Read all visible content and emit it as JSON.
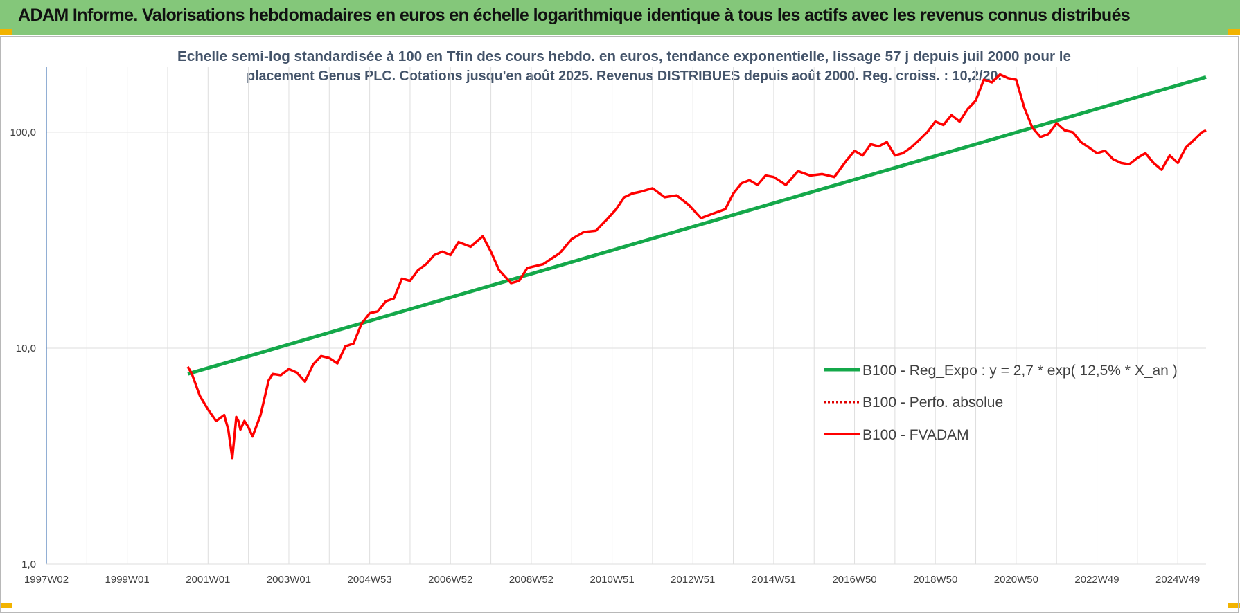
{
  "banner": {
    "title": "ADAM Informe. Valorisations hebdomadaires en euros en échelle logarithmique identique à tous les actifs avec les revenus connus distribués"
  },
  "colors": {
    "banner_bg": "#84c77a",
    "corner": "#f2b300",
    "fvadam": "#ff0000",
    "regression": "#14a84a",
    "perfo": "#e00000",
    "grid": "#dedede",
    "axis": "#4a7ab8"
  },
  "chart_data": {
    "type": "line",
    "title_lines": [
      "Echelle semi-log standardisée à 100 en Tfin des cours hebdo. en euros, tendance exponentielle, lissage 57 j depuis juil 2000 pour le",
      "placement Genus PLC. Cotations jusqu'en août 2025. Revenus DISTRIBUES depuis août 2000. Reg. croiss. : 10,2/20."
    ],
    "y_scale": "log",
    "ylim": [
      1,
      200
    ],
    "xlim": [
      1997.0,
      2025.7
    ],
    "y_ticks": [
      {
        "value": 1,
        "label": "1,0"
      },
      {
        "value": 10,
        "label": "10,0"
      },
      {
        "value": 100,
        "label": "100,0"
      }
    ],
    "x_ticks": [
      {
        "value": 1997.0,
        "label": "1997W02"
      },
      {
        "value": 1999.0,
        "label": "1999W01"
      },
      {
        "value": 2001.0,
        "label": "2001W01"
      },
      {
        "value": 2003.0,
        "label": "2003W01"
      },
      {
        "value": 2005.0,
        "label": "2004W53"
      },
      {
        "value": 2007.0,
        "label": "2006W52"
      },
      {
        "value": 2009.0,
        "label": "2008W52"
      },
      {
        "value": 2011.0,
        "label": "2010W51"
      },
      {
        "value": 2013.0,
        "label": "2012W51"
      },
      {
        "value": 2015.0,
        "label": "2014W51"
      },
      {
        "value": 2017.0,
        "label": "2016W50"
      },
      {
        "value": 2019.0,
        "label": "2018W50"
      },
      {
        "value": 2021.0,
        "label": "2020W50"
      },
      {
        "value": 2023.0,
        "label": "2022W49"
      },
      {
        "value": 2025.0,
        "label": "2024W49"
      }
    ],
    "grid": true,
    "legend_position": "bottom-right",
    "series": [
      {
        "name": "B100 - Reg_Expo : y = 2,7 * exp( 12,5% *  X_an )",
        "style": "solid-thick",
        "x": [
          2000.5,
          2025.7
        ],
        "y": [
          7.6,
          180
        ]
      },
      {
        "name": "B100 - Perfo. absolue",
        "style": "dotted",
        "x": [],
        "y": []
      },
      {
        "name": "B100 - FVADAM",
        "style": "solid",
        "x": [
          2000.5,
          2000.6,
          2000.8,
          2001.0,
          2001.2,
          2001.4,
          2001.5,
          2001.6,
          2001.7,
          2001.75,
          2001.8,
          2001.9,
          2002.0,
          2002.1,
          2002.3,
          2002.5,
          2002.6,
          2002.8,
          2003.0,
          2003.2,
          2003.4,
          2003.6,
          2003.8,
          2004.0,
          2004.2,
          2004.4,
          2004.6,
          2004.8,
          2005.0,
          2005.2,
          2005.4,
          2005.6,
          2005.8,
          2006.0,
          2006.2,
          2006.4,
          2006.6,
          2006.8,
          2007.0,
          2007.2,
          2007.5,
          2007.8,
          2008.0,
          2008.2,
          2008.5,
          2008.7,
          2008.9,
          2009.1,
          2009.3,
          2009.5,
          2009.7,
          2010.0,
          2010.3,
          2010.6,
          2010.9,
          2011.1,
          2011.3,
          2011.5,
          2011.7,
          2012.0,
          2012.3,
          2012.6,
          2012.9,
          2013.2,
          2013.5,
          2013.8,
          2014.0,
          2014.2,
          2014.4,
          2014.6,
          2014.8,
          2015.0,
          2015.3,
          2015.6,
          2015.9,
          2016.2,
          2016.5,
          2016.8,
          2017.0,
          2017.2,
          2017.4,
          2017.6,
          2017.8,
          2018.0,
          2018.2,
          2018.4,
          2018.6,
          2018.8,
          2019.0,
          2019.2,
          2019.4,
          2019.6,
          2019.8,
          2020.0,
          2020.2,
          2020.4,
          2020.6,
          2020.8,
          2021.0,
          2021.2,
          2021.4,
          2021.6,
          2021.8,
          2022.0,
          2022.2,
          2022.4,
          2022.6,
          2022.8,
          2023.0,
          2023.2,
          2023.4,
          2023.6,
          2023.8,
          2024.0,
          2024.2,
          2024.4,
          2024.6,
          2024.8,
          2025.0,
          2025.2,
          2025.4,
          2025.6,
          2025.7
        ],
        "y": [
          8.2,
          7.6,
          6.0,
          5.2,
          4.6,
          4.9,
          4.2,
          3.1,
          4.8,
          4.6,
          4.2,
          4.6,
          4.3,
          3.9,
          4.9,
          7.1,
          7.6,
          7.5,
          8.0,
          7.7,
          7.0,
          8.4,
          9.2,
          9.0,
          8.5,
          10.2,
          10.5,
          13.0,
          14.5,
          14.8,
          16.5,
          17.0,
          21.0,
          20.5,
          23.0,
          24.5,
          27.0,
          28.0,
          27.0,
          31.0,
          29.5,
          33.0,
          28.0,
          23.0,
          20.0,
          20.5,
          23.5,
          24.0,
          24.5,
          26.0,
          27.5,
          32.0,
          34.5,
          35.0,
          40.0,
          44.0,
          50.0,
          52.0,
          53.0,
          55.0,
          50.0,
          51.0,
          46.0,
          40.0,
          42.0,
          44.0,
          52.0,
          58.0,
          60.0,
          57.0,
          63.0,
          62.0,
          57.0,
          66.0,
          63.0,
          64.0,
          62.0,
          74.0,
          82.0,
          78.0,
          88.0,
          86.0,
          90.0,
          78.0,
          80.0,
          85.0,
          92.0,
          100.0,
          112.0,
          108.0,
          120.0,
          112.0,
          128.0,
          140.0,
          175.0,
          170.0,
          185.0,
          178.0,
          175.0,
          130.0,
          105.0,
          95.0,
          98.0,
          110.0,
          102.0,
          100.0,
          90.0,
          85.0,
          80.0,
          82.0,
          75.0,
          72.0,
          71.0,
          76.0,
          80.0,
          72.0,
          67.0,
          78.0,
          72.0,
          85.0,
          92.0,
          100.0,
          102.0
        ]
      }
    ]
  }
}
